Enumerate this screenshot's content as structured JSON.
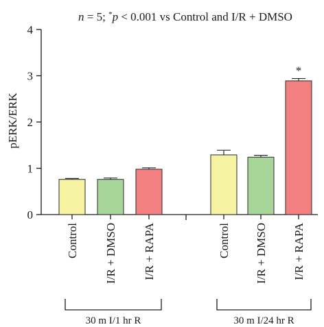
{
  "chart_data": {
    "type": "bar",
    "title_parts": {
      "n_symbol": "n",
      "n_text": " = 5; ",
      "star": "*",
      "p_symbol": "p",
      "rest": " < 0.001 vs Control and I/R + DMSO"
    },
    "ylabel": "pERK/ERK",
    "ylim": [
      0,
      4
    ],
    "yticks": [
      "0",
      "1",
      "2",
      "3",
      "4"
    ],
    "grid": false,
    "groups": [
      {
        "label": "30 m I/1 hr R",
        "bars": [
          {
            "category": "Control",
            "value": 0.76,
            "error": 0.02,
            "color": "#f5f3a2",
            "marker": ""
          },
          {
            "category": "I/R + DMSO",
            "value": 0.76,
            "error": 0.03,
            "color": "#a8d69a",
            "marker": ""
          },
          {
            "category": "I/R + RAPA",
            "value": 0.98,
            "error": 0.03,
            "color": "#f28080",
            "marker": ""
          }
        ]
      },
      {
        "label": "30 m I/24 hr R",
        "bars": [
          {
            "category": "Control",
            "value": 1.29,
            "error": 0.1,
            "color": "#f5f3a2",
            "marker": ""
          },
          {
            "category": "I/R + DMSO",
            "value": 1.24,
            "error": 0.04,
            "color": "#a8d69a",
            "marker": ""
          },
          {
            "category": "I/R + RAPA",
            "value": 2.89,
            "error": 0.05,
            "color": "#f28080",
            "marker": "*"
          }
        ]
      }
    ]
  }
}
